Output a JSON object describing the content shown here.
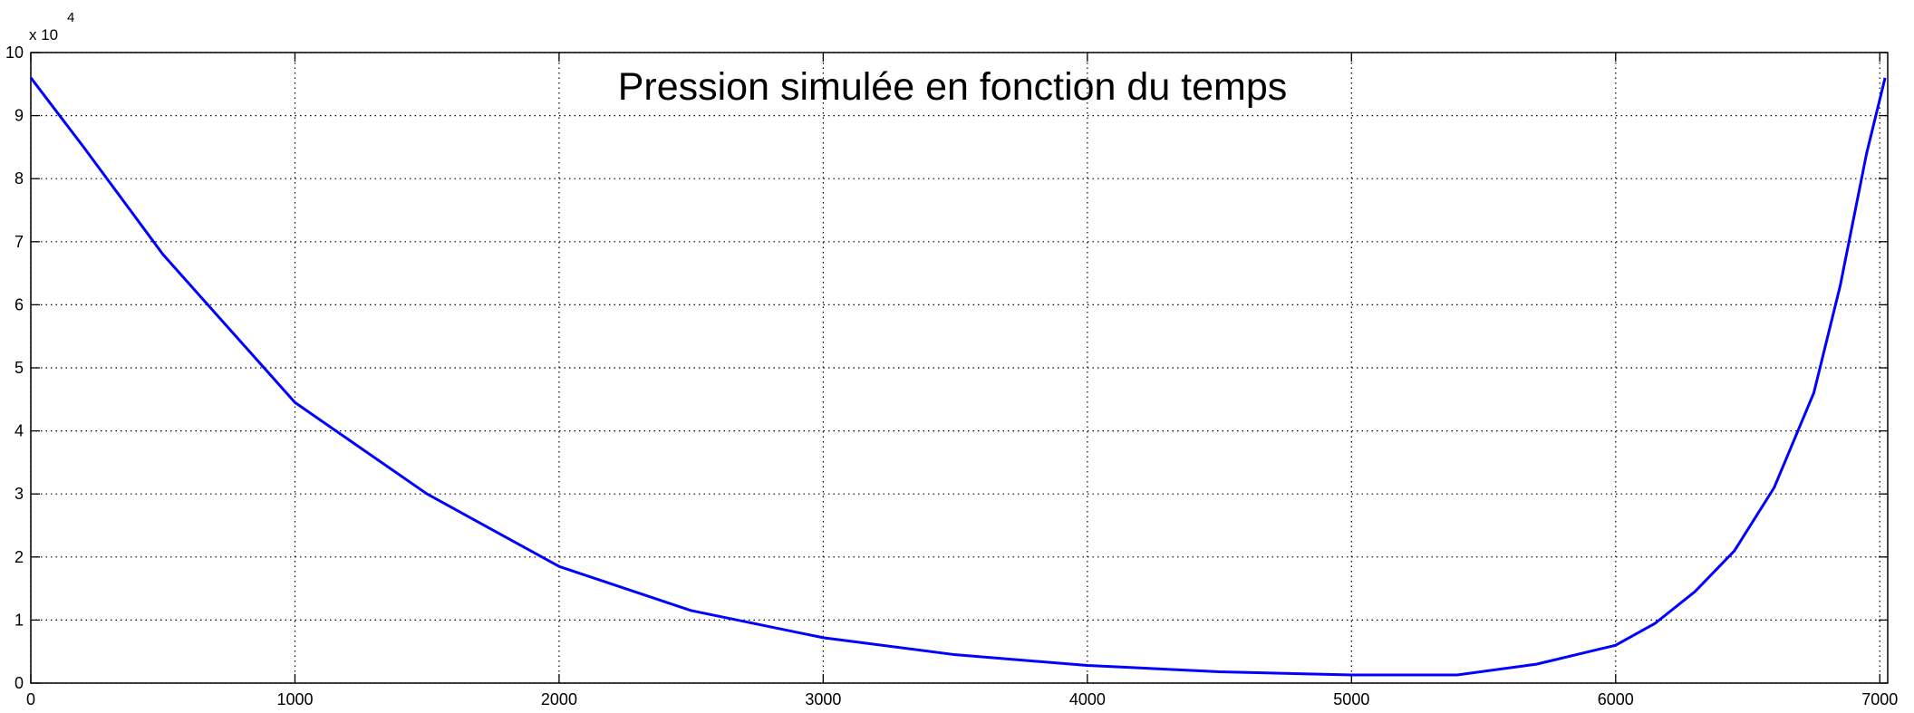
{
  "chart_data": {
    "type": "line",
    "title": "Pression simulée en fonction du temps",
    "y_multiplier": "x 10",
    "y_exponent": "4",
    "x": [
      0,
      200,
      500,
      1000,
      1500,
      2000,
      2500,
      3000,
      3500,
      4000,
      4500,
      5000,
      5400,
      5700,
      6000,
      6150,
      6300,
      6450,
      6600,
      6750,
      6850,
      6950,
      7020
    ],
    "series": [
      {
        "name": "Pression",
        "color": "#0000ff",
        "values": [
          9.6,
          8.5,
          6.8,
          4.45,
          3.0,
          1.85,
          1.15,
          0.72,
          0.45,
          0.28,
          0.18,
          0.13,
          0.13,
          0.3,
          0.6,
          0.95,
          1.45,
          2.1,
          3.1,
          4.6,
          6.3,
          8.4,
          9.6
        ]
      }
    ],
    "xlim": [
      0,
      7030
    ],
    "xticks": [
      0,
      1000,
      2000,
      3000,
      4000,
      5000,
      6000,
      7000
    ],
    "ylim": [
      0,
      10
    ],
    "yticks": [
      0,
      1,
      2,
      3,
      4,
      5,
      6,
      7,
      8,
      9,
      10
    ],
    "grid": true
  }
}
